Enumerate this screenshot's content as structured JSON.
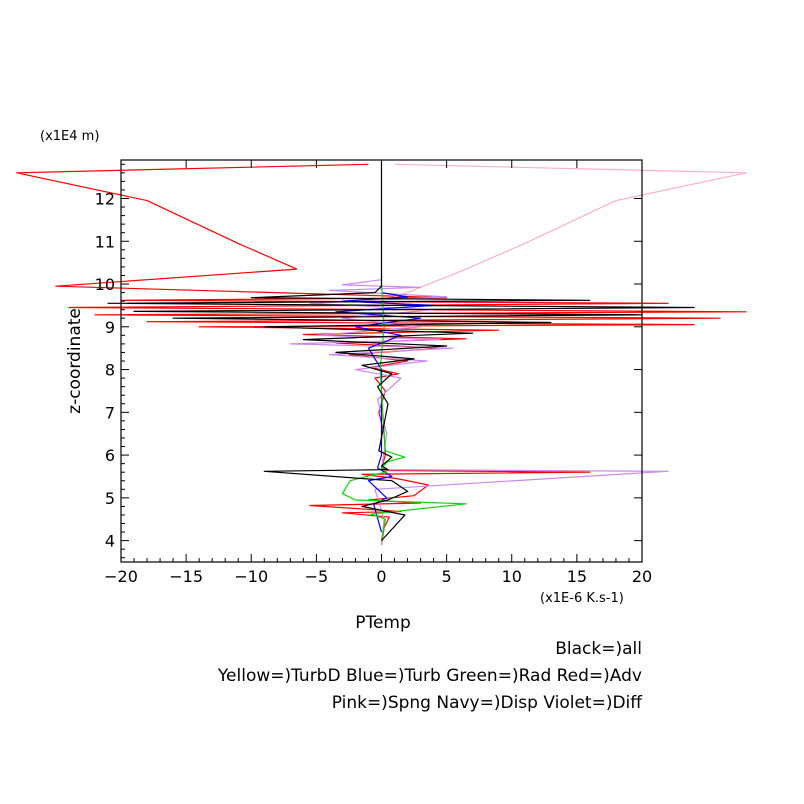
{
  "chart_data": {
    "type": "line",
    "xlabel": "PTemp",
    "ylabel": "z-coordinate",
    "x_unit": "(x1E-6 K.s-1)",
    "y_unit": "(x1E4 m)",
    "xlim": [
      -20,
      20
    ],
    "ylim": [
      3.5,
      12.9
    ],
    "x_ticks": [
      -20,
      -15,
      -10,
      -5,
      0,
      5,
      10,
      15,
      20
    ],
    "x_tick_labels": [
      "−20",
      "−15",
      "−10",
      "−5",
      "0",
      "5",
      "10",
      "15",
      "20"
    ],
    "y_ticks": [
      4,
      5,
      6,
      7,
      8,
      9,
      10,
      11,
      12
    ],
    "y_tick_labels": [
      "4",
      "5",
      "6",
      "7",
      "8",
      "9",
      "10",
      "11",
      "12"
    ],
    "legend_lines": [
      "Black=)all",
      "Yellow=)TurbD Blue=)Turb Green=)Rad Red=)Adv",
      "Pink=)Spng Navy=)Disp Violet=)Diff"
    ],
    "colors": {
      "all": "#000000",
      "Turb": "#0000ff",
      "Rad": "#00dd00",
      "Adv": "#ff0000",
      "Spng": "#ffb0c0",
      "Diff": "#cc88ee"
    },
    "series": [
      {
        "key": "Adv",
        "values": [
          [
            0,
            3.9
          ],
          [
            0.2,
            4.3
          ],
          [
            0.6,
            4.55
          ],
          [
            -3,
            4.65
          ],
          [
            1.5,
            4.68
          ],
          [
            -5.5,
            4.82
          ],
          [
            3,
            4.88
          ],
          [
            -1,
            4.95
          ],
          [
            2.5,
            5.05
          ],
          [
            3.6,
            5.3
          ],
          [
            1.2,
            5.45
          ],
          [
            -1.5,
            5.55
          ],
          [
            16,
            5.6
          ],
          [
            0.5,
            5.64
          ],
          [
            0,
            5.7
          ],
          [
            0.3,
            6.0
          ],
          [
            0.2,
            6.5
          ],
          [
            -0.2,
            7.0
          ],
          [
            0.3,
            7.5
          ],
          [
            -0.5,
            7.8
          ],
          [
            1.3,
            7.9
          ],
          [
            -0.8,
            8.05
          ],
          [
            2,
            8.2
          ],
          [
            -2.5,
            8.35
          ],
          [
            4.5,
            8.5
          ],
          [
            -3.5,
            8.62
          ],
          [
            6.5,
            8.72
          ],
          [
            -6,
            8.82
          ],
          [
            9,
            8.92
          ],
          [
            -14,
            9.0
          ],
          [
            24,
            9.05
          ],
          [
            -18,
            9.12
          ],
          [
            26,
            9.2
          ],
          [
            -22,
            9.28
          ],
          [
            28,
            9.35
          ],
          [
            -24,
            9.45
          ],
          [
            22,
            9.55
          ],
          [
            -20,
            9.62
          ],
          [
            5,
            9.68
          ],
          [
            -25,
            9.95
          ],
          [
            -6.5,
            10.35
          ],
          [
            -11,
            10.95
          ],
          [
            -18,
            11.95
          ],
          [
            -28,
            12.6
          ],
          [
            -1,
            12.8
          ]
        ]
      },
      {
        "key": "Spng",
        "values": [
          [
            0,
            9.6
          ],
          [
            2,
            9.8
          ],
          [
            6.5,
            10.35
          ],
          [
            11,
            10.95
          ],
          [
            18,
            11.95
          ],
          [
            28,
            12.6
          ],
          [
            1,
            12.8
          ]
        ]
      },
      {
        "key": "Diff",
        "values": [
          [
            0,
            3.9
          ],
          [
            0.2,
            4.5
          ],
          [
            -0.5,
            5.2
          ],
          [
            22,
            5.62
          ],
          [
            0,
            5.66
          ],
          [
            0.4,
            6.5
          ],
          [
            -0.3,
            7.3
          ],
          [
            1.5,
            7.8
          ],
          [
            -2,
            8.0
          ],
          [
            3.5,
            8.2
          ],
          [
            -4,
            8.35
          ],
          [
            5.5,
            8.5
          ],
          [
            -7,
            8.6
          ],
          [
            4.5,
            8.7
          ],
          [
            -5,
            8.8
          ],
          [
            3,
            9.0
          ],
          [
            -3,
            9.2
          ],
          [
            4,
            9.4
          ],
          [
            -5.5,
            9.55
          ],
          [
            5,
            9.7
          ],
          [
            -4,
            9.85
          ],
          [
            3,
            9.92
          ],
          [
            -3,
            9.98
          ],
          [
            0,
            10.1
          ]
        ]
      },
      {
        "key": "Turb",
        "values": [
          [
            0,
            4.2
          ],
          [
            -0.6,
            4.85
          ],
          [
            0.4,
            5.0
          ],
          [
            -1,
            5.4
          ],
          [
            0.8,
            5.5
          ],
          [
            -0.3,
            5.7
          ],
          [
            0,
            6.0
          ],
          [
            0,
            8.0
          ],
          [
            -1,
            8.5
          ],
          [
            1.5,
            8.8
          ],
          [
            -2,
            9.0
          ],
          [
            3,
            9.2
          ],
          [
            -3.5,
            9.35
          ],
          [
            4,
            9.5
          ],
          [
            -3,
            9.6
          ],
          [
            2,
            9.7
          ],
          [
            0,
            9.8
          ]
        ]
      },
      {
        "key": "Rad",
        "values": [
          [
            0,
            4.0
          ],
          [
            0.3,
            4.5
          ],
          [
            -0.8,
            4.62
          ],
          [
            6.5,
            4.86
          ],
          [
            -2,
            4.95
          ],
          [
            -3,
            5.1
          ],
          [
            -2.4,
            5.4
          ],
          [
            -0.5,
            5.55
          ],
          [
            0.4,
            5.6
          ],
          [
            0,
            5.7
          ],
          [
            0.5,
            5.85
          ],
          [
            1.8,
            5.95
          ],
          [
            0.3,
            6.1
          ],
          [
            0.1,
            7.0
          ],
          [
            -0.1,
            8.0
          ],
          [
            0.2,
            9.0
          ],
          [
            0,
            10.0
          ],
          [
            0,
            10.2
          ]
        ]
      },
      {
        "key": "all",
        "values": [
          [
            0,
            4.0
          ],
          [
            1.8,
            4.6
          ],
          [
            -1.5,
            4.8
          ],
          [
            0.5,
            4.95
          ],
          [
            2,
            5.15
          ],
          [
            0.8,
            5.4
          ],
          [
            -9,
            5.62
          ],
          [
            0.5,
            5.66
          ],
          [
            0,
            5.75
          ],
          [
            0.8,
            5.95
          ],
          [
            -0.2,
            6.1
          ],
          [
            0.5,
            7.2
          ],
          [
            -0.3,
            7.6
          ],
          [
            0.8,
            7.9
          ],
          [
            -1.5,
            8.1
          ],
          [
            2.5,
            8.25
          ],
          [
            -3.5,
            8.4
          ],
          [
            5,
            8.55
          ],
          [
            -6,
            8.7
          ],
          [
            7,
            8.85
          ],
          [
            -9,
            9.0
          ],
          [
            13,
            9.1
          ],
          [
            -16,
            9.2
          ],
          [
            20,
            9.28
          ],
          [
            -19,
            9.36
          ],
          [
            24,
            9.45
          ],
          [
            -21,
            9.55
          ],
          [
            16,
            9.62
          ],
          [
            -10,
            9.68
          ],
          [
            -0.5,
            9.8
          ],
          [
            0,
            9.95
          ],
          [
            0,
            12.9
          ]
        ]
      }
    ]
  }
}
